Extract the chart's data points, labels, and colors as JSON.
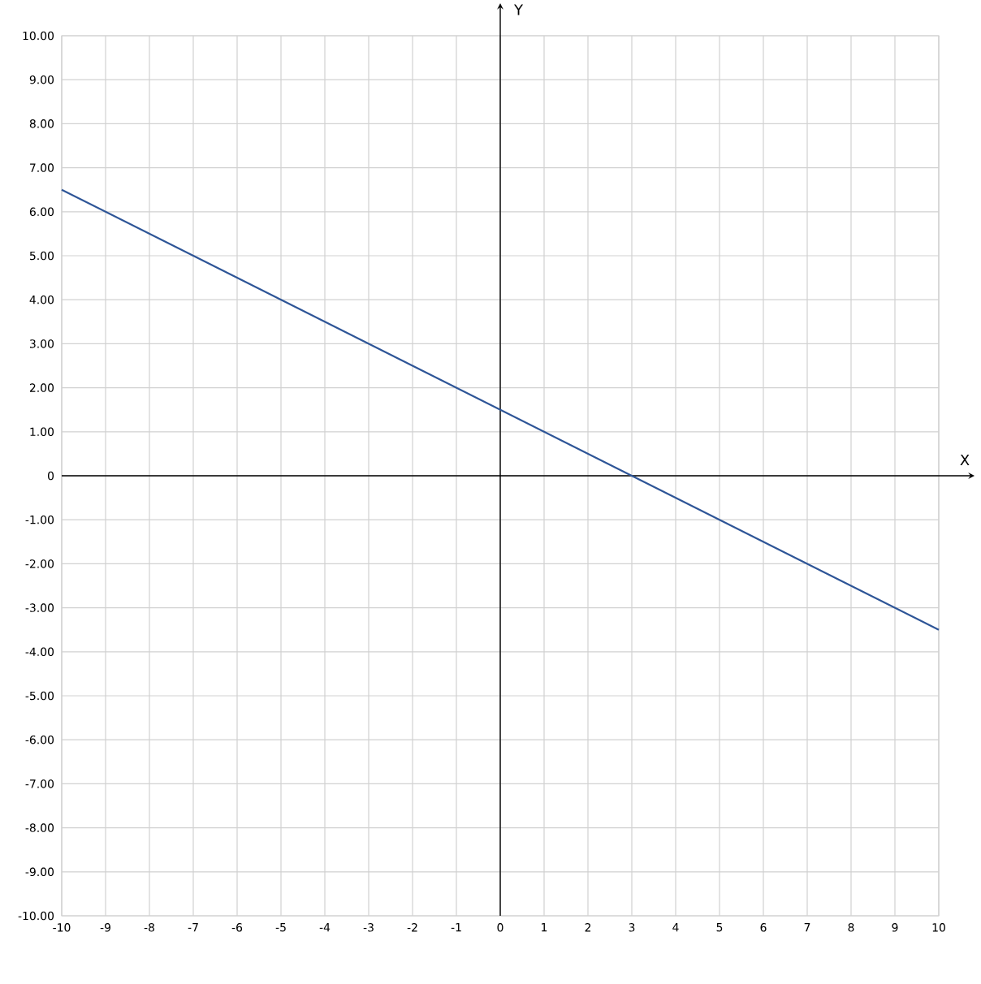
{
  "chart_data": {
    "type": "line",
    "xlabel": "X",
    "ylabel": "Y",
    "x": [
      -10,
      10
    ],
    "series": [
      {
        "color": "#2e5597",
        "values": [
          6.5,
          -3.5
        ]
      }
    ],
    "xlim": [
      -10,
      10
    ],
    "ylim": [
      -10,
      10
    ],
    "xticks": [
      -10,
      -9,
      -8,
      -7,
      -6,
      -5,
      -4,
      -3,
      -2,
      -1,
      0,
      1,
      2,
      3,
      4,
      5,
      6,
      7,
      8,
      9,
      10
    ],
    "yticks": [
      {
        "value": -10,
        "label": "-10.00"
      },
      {
        "value": -9,
        "label": "-9.00"
      },
      {
        "value": -8,
        "label": "-8.00"
      },
      {
        "value": -7,
        "label": "-7.00"
      },
      {
        "value": -6,
        "label": "-6.00"
      },
      {
        "value": -5,
        "label": "-5.00"
      },
      {
        "value": -4,
        "label": "-4.00"
      },
      {
        "value": -3,
        "label": "-3.00"
      },
      {
        "value": -2,
        "label": "-2.00"
      },
      {
        "value": -1,
        "label": "-1.00"
      },
      0,
      {
        "value": 1,
        "label": "1.00"
      },
      {
        "value": 2,
        "label": "2.00"
      },
      {
        "value": 3,
        "label": "3.00"
      },
      {
        "value": 4,
        "label": "4.00"
      },
      {
        "value": 5,
        "label": "5.00"
      },
      {
        "value": 6,
        "label": "6.00"
      },
      {
        "value": 7,
        "label": "7.00"
      },
      {
        "value": 8,
        "label": "8.00"
      },
      {
        "value": 9,
        "label": "9.00"
      },
      {
        "value": 10,
        "label": "10.00"
      }
    ],
    "grid": true,
    "marker": "none",
    "line_style": "solid"
  }
}
